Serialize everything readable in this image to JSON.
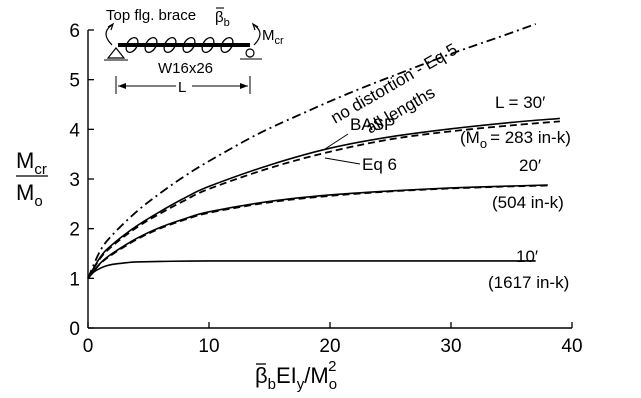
{
  "chart_data": {
    "type": "line",
    "xlim": [
      0,
      40
    ],
    "ylim": [
      0,
      6
    ],
    "x_ticks": [
      "0",
      "10",
      "20",
      "30",
      "40"
    ],
    "y_ticks": [
      "0",
      "1",
      "2",
      "3",
      "4",
      "5",
      "6"
    ],
    "ylabel": {
      "num_main": "M",
      "num_sub": "cr",
      "den_main": "M",
      "den_sub": "o"
    },
    "xlabel": {
      "a": "β",
      "b": "EI",
      "b_sub": "y",
      "slash": "/M",
      "sub": "o",
      "sup": "2"
    },
    "series": [
      {
        "style": "dashdot",
        "x": [
          0,
          1,
          2,
          4,
          6,
          8,
          10,
          14,
          18,
          22,
          26,
          30,
          34,
          37
        ],
        "y": [
          1,
          1.55,
          1.87,
          2.34,
          2.72,
          3.06,
          3.36,
          3.9,
          4.35,
          4.77,
          5.15,
          5.52,
          5.86,
          6.12
        ]
      },
      {
        "style": "solid",
        "x": [
          0,
          1,
          2,
          4,
          6,
          8,
          10,
          15,
          20,
          25,
          30,
          35,
          39
        ],
        "y": [
          1,
          1.42,
          1.68,
          2.05,
          2.35,
          2.62,
          2.85,
          3.28,
          3.62,
          3.85,
          4.01,
          4.14,
          4.22
        ]
      },
      {
        "style": "dashed",
        "x": [
          0,
          1,
          2,
          4,
          6,
          8,
          10,
          15,
          20,
          25,
          30,
          35,
          39
        ],
        "y": [
          1,
          1.4,
          1.65,
          2.02,
          2.31,
          2.57,
          2.8,
          3.22,
          3.55,
          3.8,
          3.96,
          4.08,
          4.16
        ]
      },
      {
        "style": "solid",
        "x": [
          0,
          1,
          2,
          4,
          6,
          8,
          10,
          15,
          20,
          25,
          30,
          35,
          38
        ],
        "y": [
          1,
          1.3,
          1.5,
          1.8,
          2.03,
          2.2,
          2.34,
          2.55,
          2.68,
          2.76,
          2.82,
          2.86,
          2.88
        ]
      },
      {
        "style": "dashed",
        "x": [
          0,
          1,
          2,
          4,
          6,
          8,
          10,
          15,
          20,
          25,
          30,
          35,
          38
        ],
        "y": [
          1,
          1.29,
          1.48,
          1.78,
          2.01,
          2.18,
          2.32,
          2.53,
          2.66,
          2.75,
          2.81,
          2.85,
          2.87
        ]
      },
      {
        "style": "solid",
        "x": [
          0,
          0.5,
          1,
          1.5,
          2,
          3,
          4,
          6,
          10,
          20,
          30,
          37
        ],
        "y": [
          1,
          1.13,
          1.2,
          1.25,
          1.28,
          1.31,
          1.33,
          1.34,
          1.35,
          1.35,
          1.35,
          1.35
        ]
      }
    ],
    "annotations": {
      "no_distortion": "no distortion - Eq 5",
      "all_lengths": "all lengths",
      "basp": "BASP",
      "eq6": "Eq 6",
      "l30": "L = 30′",
      "mo30_open": "(",
      "mo30_m": "M",
      "mo30_sub": "o",
      "mo30_rest": "= 283 in-k)",
      "l20": "20′",
      "mo20": "(504 in-k)",
      "l10": "10′",
      "mo10": "(1617 in-k)"
    },
    "inset": {
      "top_text": "Top flg.  brace",
      "beta": "β",
      "beta_sub": "b",
      "moment": "M",
      "moment_sub": "cr",
      "section": "W16x26",
      "length": "L"
    }
  }
}
